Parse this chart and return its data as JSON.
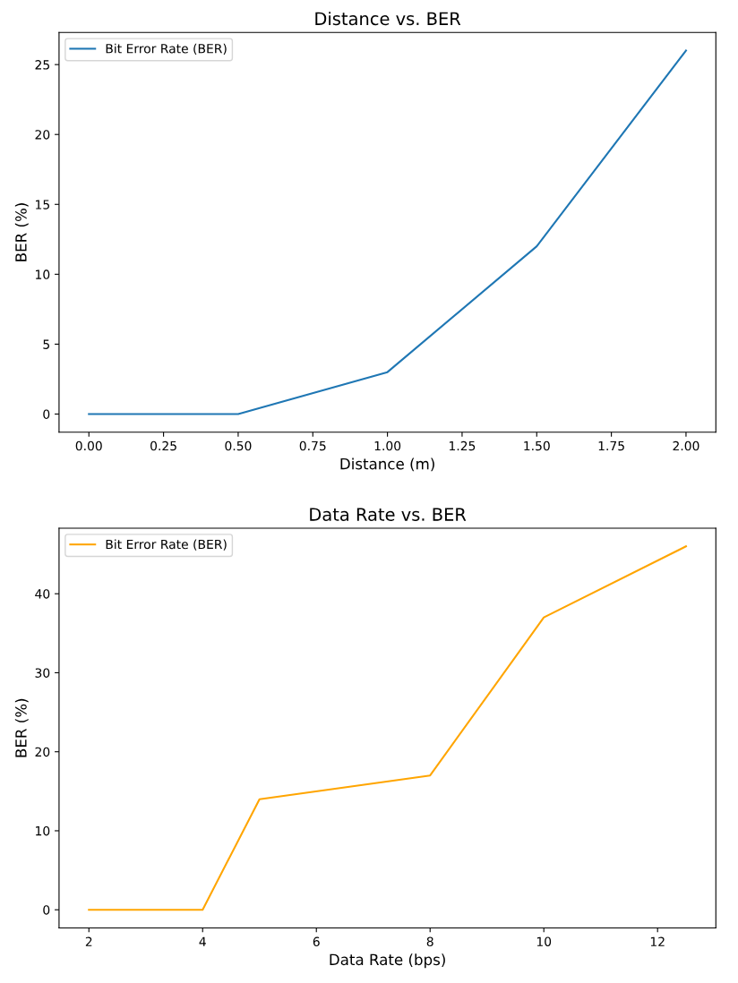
{
  "chart_data": [
    {
      "type": "line",
      "title": "Distance vs. BER",
      "xlabel": "Distance (m)",
      "ylabel": "BER (%)",
      "x": [
        0,
        0.5,
        1,
        1.5,
        2
      ],
      "series": [
        {
          "name": "Bit Error Rate (BER)",
          "color": "#1f77b4",
          "values": [
            0,
            0,
            3,
            12,
            26
          ]
        }
      ],
      "xlim": [
        -0.1,
        2.1
      ],
      "xticks": [
        {
          "value": 0,
          "label": "0.00"
        },
        {
          "value": 0.25,
          "label": "0.25"
        },
        {
          "value": 0.5,
          "label": "0.50"
        },
        {
          "value": 0.75,
          "label": "0.75"
        },
        {
          "value": 1,
          "label": "1.00"
        },
        {
          "value": 1.25,
          "label": "1.25"
        },
        {
          "value": 1.5,
          "label": "1.50"
        },
        {
          "value": 1.75,
          "label": "1.75"
        },
        {
          "value": 2,
          "label": "2.00"
        }
      ],
      "ylim": [
        -1.3,
        27.3
      ],
      "yticks": [
        0,
        5,
        10,
        15,
        20,
        25
      ],
      "legend": "top left",
      "grid": false,
      "marker": "none",
      "line_style": "solid"
    },
    {
      "type": "line",
      "title": "Data Rate vs. BER",
      "xlabel": "Data Rate (bps)",
      "ylabel": "BER (%)",
      "x": [
        2,
        4,
        5,
        8,
        10,
        12.5
      ],
      "series": [
        {
          "name": "Bit Error Rate (BER)",
          "color": "#ffa500",
          "values": [
            0,
            0,
            14,
            17,
            37,
            46
          ]
        }
      ],
      "xlim": [
        1.475,
        13.025
      ],
      "xticks": [
        2,
        4,
        6,
        8,
        10,
        12
      ],
      "ylim": [
        -2.3,
        48.3
      ],
      "yticks": [
        0,
        10,
        20,
        30,
        40
      ],
      "legend": "top left",
      "grid": false,
      "marker": "none",
      "line_style": "solid"
    }
  ]
}
